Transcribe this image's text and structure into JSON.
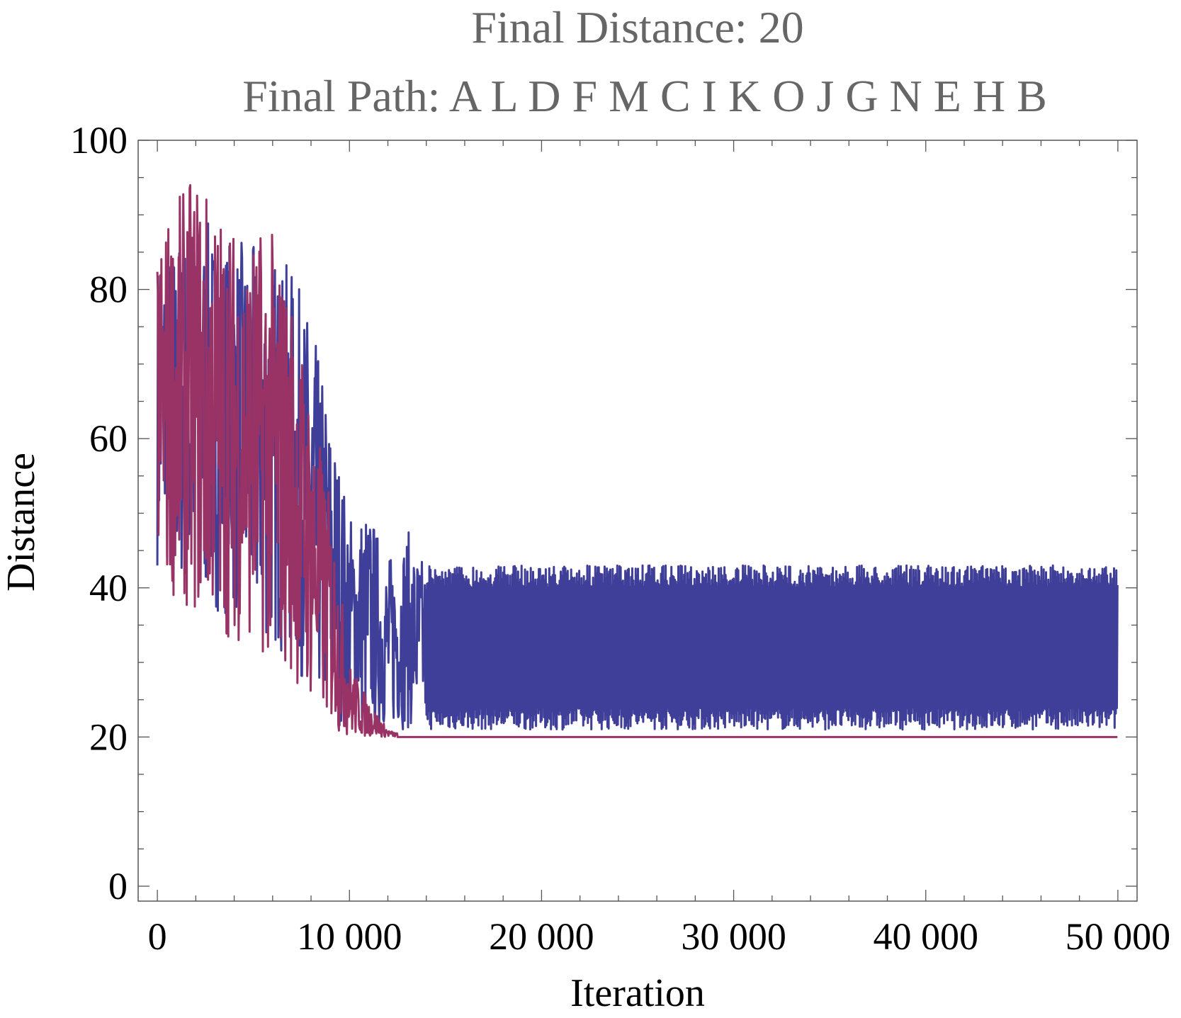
{
  "chart_data": {
    "type": "line",
    "title": "Final Distance: 20",
    "subtitle": "Final Path: A L D F M C I K O J G N E H B",
    "xlabel": "Iteration",
    "ylabel": "Distance",
    "xlim": [
      -1000,
      51000
    ],
    "ylim": [
      -2,
      100
    ],
    "xticks": [
      0,
      10000,
      20000,
      30000,
      40000,
      50000
    ],
    "xtick_labels": [
      "0",
      "10 000",
      "20 000",
      "30 000",
      "40 000",
      "50 000"
    ],
    "yticks": [
      0,
      20,
      40,
      60,
      80,
      100
    ],
    "ytick_labels": [
      "0",
      "20",
      "40",
      "60",
      "80",
      "100"
    ],
    "grid": false,
    "frame": true,
    "series": [
      {
        "color": "#3f3f99",
        "description": "current distance: noisy ~40-95 until ~10000, then oscillating between ~21 and ~43 through 50000",
        "envelope": [
          {
            "x": 0,
            "low": 43,
            "high": 85
          },
          {
            "x": 2000,
            "low": 38,
            "high": 90
          },
          {
            "x": 4000,
            "low": 36,
            "high": 87
          },
          {
            "x": 6000,
            "low": 32,
            "high": 85
          },
          {
            "x": 7000,
            "low": 30,
            "high": 83
          },
          {
            "x": 8000,
            "low": 26,
            "high": 76
          },
          {
            "x": 9000,
            "low": 22,
            "high": 64
          },
          {
            "x": 10000,
            "low": 21,
            "high": 50
          },
          {
            "x": 11000,
            "low": 21,
            "high": 51
          },
          {
            "x": 12000,
            "low": 21,
            "high": 44
          },
          {
            "x": 13000,
            "low": 21,
            "high": 48
          },
          {
            "x": 14000,
            "low": 21,
            "high": 43
          },
          {
            "x": 50000,
            "low": 21,
            "high": 43
          }
        ]
      },
      {
        "color": "#993366",
        "description": "best distance so far: noisy ~30-95 until ~10000, then flat at 20 through 50000",
        "envelope": [
          {
            "x": 0,
            "low": 41,
            "high": 88
          },
          {
            "x": 2000,
            "low": 36,
            "high": 96
          },
          {
            "x": 4000,
            "low": 33,
            "high": 89
          },
          {
            "x": 6000,
            "low": 30,
            "high": 88
          },
          {
            "x": 7000,
            "low": 28,
            "high": 80
          },
          {
            "x": 8000,
            "low": 24,
            "high": 66
          },
          {
            "x": 9000,
            "low": 21,
            "high": 52
          },
          {
            "x": 10000,
            "low": 20,
            "high": 30
          },
          {
            "x": 11000,
            "low": 20,
            "high": 25
          },
          {
            "x": 12000,
            "low": 20,
            "high": 21
          },
          {
            "x": 13000,
            "low": 20,
            "high": 20
          },
          {
            "x": 50000,
            "low": 20,
            "high": 20
          }
        ]
      }
    ]
  }
}
